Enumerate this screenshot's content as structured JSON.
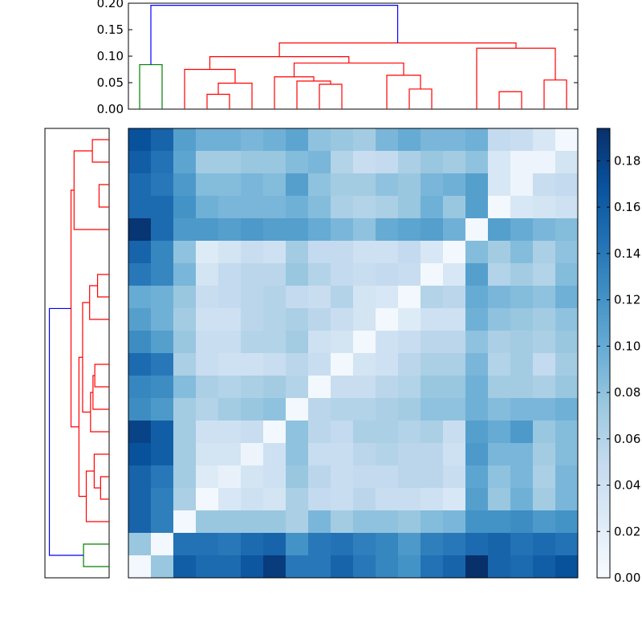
{
  "chart_data": [
    {
      "type": "dendrogram",
      "orientation": "top",
      "title": "",
      "xlabel": "",
      "ylabel": "",
      "ylim": [
        0,
        0.2
      ],
      "yticks": [
        "0.00",
        "0.05",
        "0.10",
        "0.15",
        "0.20"
      ],
      "leaf_count": 20,
      "link_colors": {
        "cluster_a": "#008000",
        "cluster_b": "#ff0000",
        "root": "#0000ff"
      },
      "links": [
        {
          "left": 0.5,
          "right": 1.5,
          "height": 0.084,
          "color": "green"
        },
        {
          "left": 3.5,
          "right": 4.5,
          "height": 0.028,
          "color": "red"
        },
        {
          "left": 4.0,
          "right": 5.5,
          "height": 0.049,
          "color": "red"
        },
        {
          "left": 2.5,
          "right": 4.75,
          "height": 0.075,
          "color": "red"
        },
        {
          "left": 8.5,
          "right": 9.5,
          "height": 0.047,
          "color": "red"
        },
        {
          "left": 7.5,
          "right": 9.0,
          "height": 0.053,
          "color": "red"
        },
        {
          "left": 6.5,
          "right": 8.25,
          "height": 0.061,
          "color": "red"
        },
        {
          "left": 12.5,
          "right": 13.5,
          "height": 0.038,
          "color": "red"
        },
        {
          "left": 11.5,
          "right": 13.0,
          "height": 0.064,
          "color": "red"
        },
        {
          "left": 7.375,
          "right": 12.25,
          "height": 0.087,
          "color": "red"
        },
        {
          "left": 3.625,
          "right": 9.8125,
          "height": 0.099,
          "color": "red"
        },
        {
          "left": 16.5,
          "right": 17.5,
          "height": 0.033,
          "color": "red"
        },
        {
          "left": 18.5,
          "right": 19.5,
          "height": 0.055,
          "color": "red"
        },
        {
          "left": 15.5,
          "right": 19.0,
          "height": 0.115,
          "color": "red"
        },
        {
          "left": 6.71875,
          "right": 17.25,
          "height": 0.125,
          "color": "red"
        },
        {
          "left": 1.0,
          "right": 11.984375,
          "height": 0.196,
          "color": "blue"
        }
      ]
    },
    {
      "type": "dendrogram",
      "orientation": "left",
      "title": "",
      "leaf_count": 20,
      "note_levels": "same linkage tree mirrored on the row axis"
    },
    {
      "type": "heatmap",
      "title": "",
      "rows": 20,
      "cols": 20,
      "colormap": "Blues",
      "vmin": 0.0,
      "vmax": 0.194,
      "values": [
        [
          0.17,
          0.155,
          0.11,
          0.095,
          0.095,
          0.09,
          0.095,
          0.105,
          0.08,
          0.075,
          0.07,
          0.09,
          0.1,
          0.09,
          0.09,
          0.095,
          0.05,
          0.045,
          0.03,
          0.005
        ],
        [
          0.16,
          0.145,
          0.105,
          0.07,
          0.07,
          0.075,
          0.075,
          0.085,
          0.09,
          0.06,
          0.045,
          0.05,
          0.065,
          0.075,
          0.07,
          0.08,
          0.03,
          0.01,
          0.01,
          0.035
        ],
        [
          0.15,
          0.14,
          0.115,
          0.085,
          0.085,
          0.09,
          0.085,
          0.11,
          0.08,
          0.07,
          0.07,
          0.08,
          0.075,
          0.09,
          0.095,
          0.11,
          0.03,
          0.01,
          0.045,
          0.05
        ],
        [
          0.15,
          0.15,
          0.12,
          0.095,
          0.09,
          0.09,
          0.09,
          0.095,
          0.085,
          0.065,
          0.06,
          0.065,
          0.075,
          0.095,
          0.075,
          0.11,
          0.005,
          0.03,
          0.035,
          0.04
        ],
        [
          0.19,
          0.15,
          0.115,
          0.115,
          0.11,
          0.115,
          0.11,
          0.11,
          0.1,
          0.09,
          0.08,
          0.1,
          0.105,
          0.11,
          0.095,
          0.005,
          0.11,
          0.1,
          0.09,
          0.085
        ],
        [
          0.155,
          0.13,
          0.08,
          0.025,
          0.035,
          0.045,
          0.04,
          0.07,
          0.05,
          0.05,
          0.04,
          0.04,
          0.05,
          0.03,
          0.005,
          0.085,
          0.07,
          0.085,
          0.065,
          0.08
        ],
        [
          0.14,
          0.13,
          0.09,
          0.035,
          0.05,
          0.055,
          0.055,
          0.075,
          0.06,
          0.05,
          0.045,
          0.05,
          0.045,
          0.005,
          0.03,
          0.11,
          0.06,
          0.07,
          0.06,
          0.085
        ],
        [
          0.1,
          0.095,
          0.075,
          0.045,
          0.05,
          0.055,
          0.06,
          0.05,
          0.045,
          0.06,
          0.035,
          0.03,
          0.005,
          0.06,
          0.055,
          0.1,
          0.09,
          0.085,
          0.08,
          0.095
        ],
        [
          0.11,
          0.095,
          0.07,
          0.04,
          0.04,
          0.055,
          0.06,
          0.065,
          0.055,
          0.045,
          0.035,
          0.005,
          0.025,
          0.04,
          0.04,
          0.095,
          0.08,
          0.075,
          0.07,
          0.08
        ],
        [
          0.125,
          0.11,
          0.075,
          0.045,
          0.045,
          0.06,
          0.06,
          0.07,
          0.04,
          0.035,
          0.005,
          0.04,
          0.045,
          0.055,
          0.055,
          0.08,
          0.065,
          0.07,
          0.065,
          0.075
        ],
        [
          0.15,
          0.14,
          0.065,
          0.045,
          0.04,
          0.04,
          0.045,
          0.055,
          0.045,
          0.005,
          0.035,
          0.04,
          0.055,
          0.065,
          0.065,
          0.09,
          0.06,
          0.07,
          0.05,
          0.07
        ],
        [
          0.13,
          0.125,
          0.085,
          0.065,
          0.06,
          0.065,
          0.07,
          0.06,
          0.005,
          0.045,
          0.045,
          0.055,
          0.06,
          0.075,
          0.075,
          0.095,
          0.07,
          0.07,
          0.065,
          0.075
        ],
        [
          0.125,
          0.115,
          0.07,
          0.06,
          0.07,
          0.075,
          0.08,
          0.005,
          0.055,
          0.06,
          0.06,
          0.065,
          0.07,
          0.08,
          0.08,
          0.095,
          0.085,
          0.09,
          0.09,
          0.095
        ],
        [
          0.18,
          0.16,
          0.07,
          0.04,
          0.04,
          0.045,
          0.005,
          0.08,
          0.055,
          0.05,
          0.065,
          0.065,
          0.06,
          0.065,
          0.045,
          0.11,
          0.1,
          0.115,
          0.075,
          0.085
        ],
        [
          0.17,
          0.16,
          0.07,
          0.035,
          0.035,
          0.01,
          0.04,
          0.08,
          0.045,
          0.045,
          0.055,
          0.06,
          0.055,
          0.055,
          0.04,
          0.115,
          0.09,
          0.09,
          0.07,
          0.085
        ],
        [
          0.155,
          0.14,
          0.07,
          0.025,
          0.015,
          0.035,
          0.04,
          0.075,
          0.055,
          0.045,
          0.05,
          0.05,
          0.055,
          0.055,
          0.045,
          0.105,
          0.08,
          0.09,
          0.065,
          0.09
        ],
        [
          0.155,
          0.135,
          0.065,
          0.005,
          0.03,
          0.04,
          0.035,
          0.065,
          0.05,
          0.045,
          0.055,
          0.045,
          0.045,
          0.04,
          0.03,
          0.11,
          0.075,
          0.095,
          0.07,
          0.09
        ],
        [
          0.155,
          0.135,
          0.005,
          0.075,
          0.075,
          0.075,
          0.075,
          0.065,
          0.09,
          0.07,
          0.08,
          0.08,
          0.075,
          0.085,
          0.09,
          0.12,
          0.12,
          0.125,
          0.115,
          0.12
        ],
        [
          0.075,
          0.005,
          0.145,
          0.145,
          0.14,
          0.15,
          0.155,
          0.12,
          0.14,
          0.145,
          0.135,
          0.13,
          0.115,
          0.135,
          0.14,
          0.15,
          0.155,
          0.145,
          0.15,
          0.145
        ],
        [
          0.005,
          0.075,
          0.16,
          0.15,
          0.15,
          0.165,
          0.185,
          0.14,
          0.14,
          0.155,
          0.14,
          0.13,
          0.12,
          0.145,
          0.155,
          0.194,
          0.155,
          0.15,
          0.16,
          0.17
        ]
      ]
    },
    {
      "type": "colorbar",
      "title": "",
      "ticks": [
        "0.00",
        "0.02",
        "0.04",
        "0.06",
        "0.08",
        "0.10",
        "0.12",
        "0.14",
        "0.16",
        "0.18"
      ],
      "range": [
        0,
        0.194
      ]
    }
  ]
}
